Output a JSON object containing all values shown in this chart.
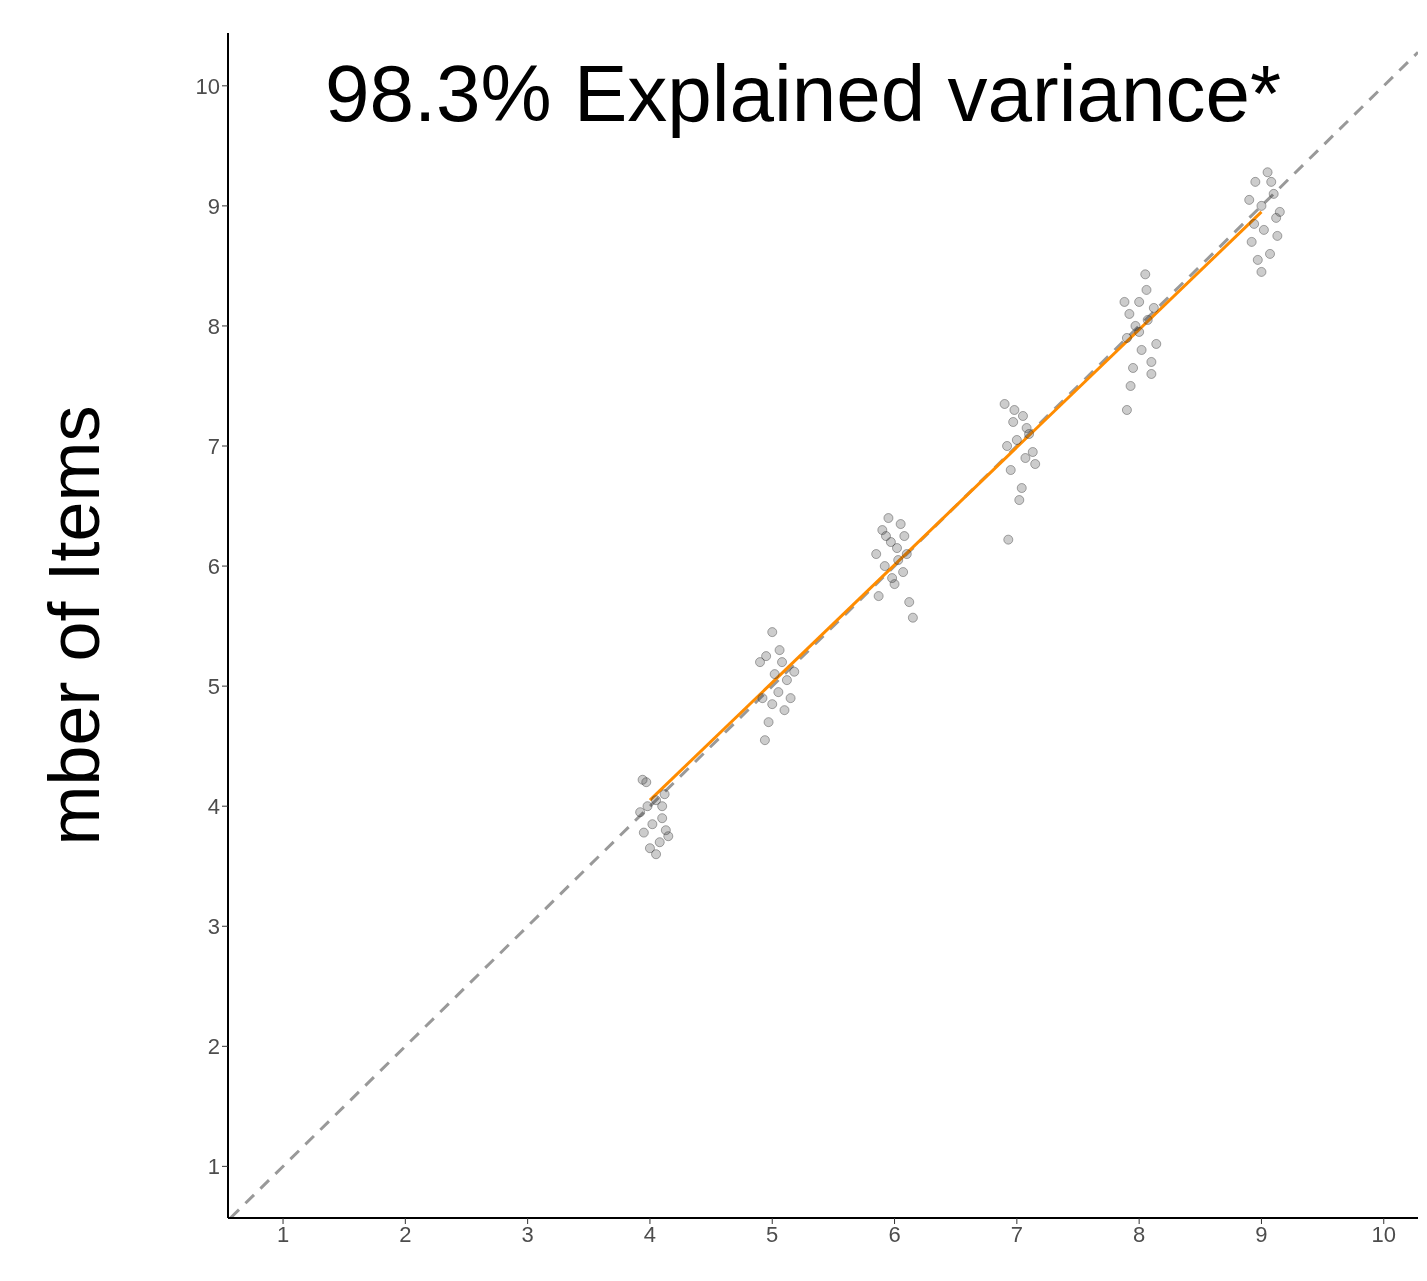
{
  "chart_data": {
    "type": "scatter",
    "title": "98.3% Explained variance*",
    "ylabel": "mber of Items",
    "xlim": [
      0.55,
      10.28
    ],
    "ylim": [
      0.57,
      10.44
    ],
    "xticks": [
      1,
      2,
      3,
      4,
      5,
      6,
      7,
      8,
      9,
      10
    ],
    "yticks": [
      1,
      2,
      3,
      4,
      5,
      6,
      7,
      8,
      9,
      10
    ],
    "series": [
      {
        "color": "#333333",
        "marker": "circle",
        "x": [
          3.92,
          3.95,
          3.97,
          4.0,
          4.02,
          4.05,
          4.08,
          4.1,
          4.12,
          4.15,
          3.98,
          4.05,
          4.13,
          3.94,
          4.1,
          4.9,
          4.92,
          4.95,
          4.97,
          5.0,
          5.0,
          5.02,
          5.05,
          5.08,
          5.1,
          5.12,
          5.15,
          5.18,
          4.94,
          5.06,
          5.85,
          5.87,
          5.9,
          5.92,
          5.95,
          5.97,
          6.0,
          6.02,
          6.05,
          6.07,
          6.1,
          6.12,
          6.15,
          5.93,
          6.03,
          6.08,
          5.98,
          6.9,
          6.92,
          6.95,
          6.97,
          7.0,
          7.02,
          7.05,
          7.07,
          7.1,
          7.13,
          7.15,
          6.93,
          7.04,
          6.98,
          7.08,
          7.88,
          7.9,
          7.92,
          7.95,
          7.97,
          8.0,
          8.02,
          8.05,
          8.07,
          8.1,
          8.12,
          8.14,
          7.9,
          7.93,
          8.0,
          8.06,
          8.1,
          8.9,
          8.92,
          8.95,
          8.97,
          9.0,
          9.02,
          9.05,
          9.07,
          9.1,
          9.12,
          9.15,
          8.94,
          9.0,
          9.08,
          9.13
        ],
        "values": [
          3.95,
          3.78,
          4.2,
          3.65,
          3.85,
          4.05,
          3.7,
          3.9,
          4.1,
          3.75,
          4.0,
          3.6,
          3.8,
          4.22,
          4.0,
          5.2,
          4.9,
          5.25,
          4.7,
          5.45,
          4.85,
          5.1,
          4.95,
          5.2,
          4.8,
          5.05,
          4.9,
          5.12,
          4.55,
          5.3,
          6.1,
          5.75,
          6.3,
          6.0,
          6.4,
          6.2,
          5.85,
          6.15,
          6.35,
          5.95,
          6.1,
          5.7,
          5.57,
          6.25,
          6.05,
          6.25,
          5.9,
          7.35,
          7.0,
          6.8,
          7.2,
          7.05,
          6.55,
          7.25,
          6.9,
          7.1,
          6.95,
          6.85,
          6.22,
          6.65,
          7.3,
          7.15,
          8.2,
          7.9,
          8.1,
          7.65,
          8.0,
          8.2,
          7.8,
          8.43,
          8.05,
          7.7,
          8.15,
          7.85,
          7.3,
          7.5,
          7.95,
          8.3,
          7.6,
          9.05,
          8.7,
          9.2,
          8.55,
          9.0,
          8.8,
          9.28,
          8.6,
          9.1,
          8.9,
          8.95,
          8.85,
          8.45,
          9.2,
          8.75
        ]
      },
      {
        "type": "line",
        "color": "#999999",
        "line_style": "dashed",
        "marker": "none",
        "x": [
          0.57,
          10.28
        ],
        "values": [
          0.57,
          10.28
        ]
      },
      {
        "type": "line",
        "color": "#ff8c00",
        "line_style": "solid",
        "marker": "none",
        "x": [
          4,
          9
        ],
        "values": [
          4.05,
          8.95
        ]
      }
    ]
  }
}
